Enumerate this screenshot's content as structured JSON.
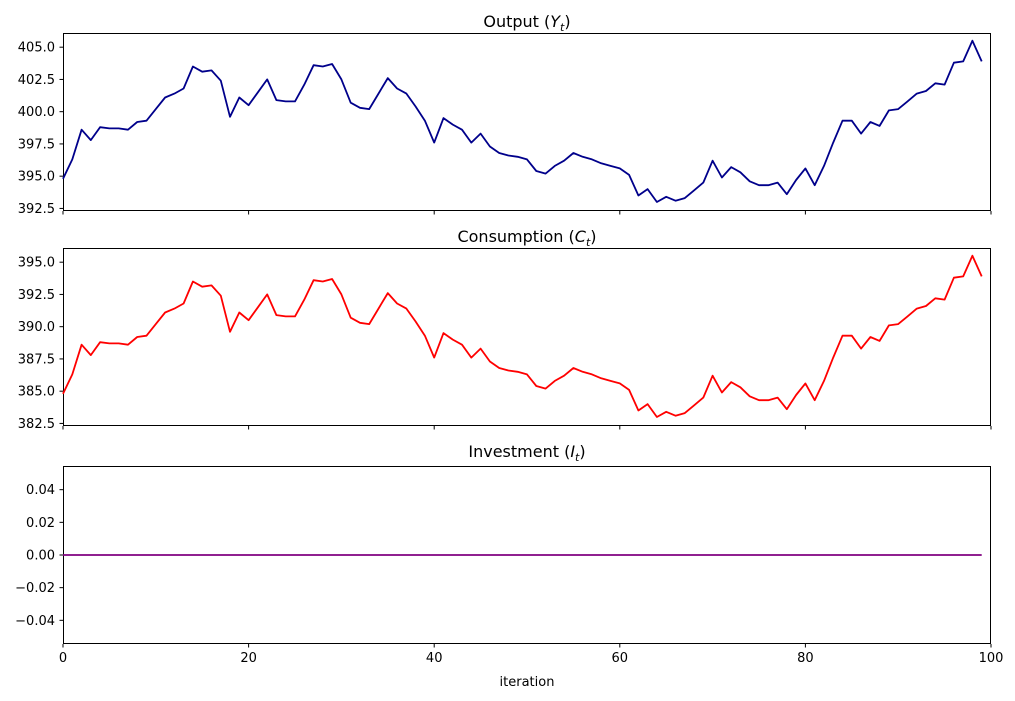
{
  "figure": {
    "background": "#ffffff",
    "text_color": "#000000",
    "spine_color": "#000000"
  },
  "x_axis": {
    "label": "iteration",
    "ticks": [
      0,
      20,
      40,
      60,
      80,
      100
    ],
    "tick_labels": [
      "0",
      "20",
      "40",
      "60",
      "80",
      "100"
    ],
    "xlim": [
      0,
      100
    ],
    "x_start": 0,
    "x_step": 1
  },
  "chart_data": [
    {
      "type": "line",
      "name": "output",
      "title": {
        "prefix": "Output (",
        "variable": "Y",
        "subscript": "t",
        "suffix": ")"
      },
      "line_color": "#00008B",
      "legend": "none",
      "grid": false,
      "ylim": [
        392.3,
        406.1
      ],
      "y_tick_values": [
        405.0,
        402.5,
        400.0,
        397.5,
        395.0,
        392.5
      ],
      "y_tick_labels": [
        "405.0",
        "402.5",
        "400.0",
        "397.5",
        "395.0",
        "392.5"
      ],
      "values": [
        394.8,
        396.3,
        398.6,
        397.8,
        398.8,
        398.7,
        398.7,
        398.6,
        399.2,
        399.3,
        400.2,
        401.1,
        401.4,
        401.8,
        403.5,
        403.1,
        403.2,
        402.4,
        399.6,
        401.1,
        400.5,
        401.5,
        402.5,
        400.9,
        400.8,
        400.8,
        402.1,
        403.6,
        403.5,
        403.7,
        402.5,
        400.7,
        400.3,
        400.2,
        401.4,
        402.6,
        401.8,
        401.4,
        400.4,
        399.3,
        397.6,
        399.5,
        399.0,
        398.6,
        397.6,
        398.3,
        397.3,
        396.8,
        396.6,
        396.5,
        396.3,
        395.4,
        395.2,
        395.8,
        396.2,
        396.8,
        396.5,
        396.3,
        396.0,
        395.8,
        395.6,
        395.1,
        393.5,
        394.0,
        393.0,
        393.4,
        393.1,
        393.3,
        393.9,
        394.5,
        396.2,
        394.9,
        395.7,
        395.3,
        394.6,
        394.3,
        394.3,
        394.5,
        393.6,
        394.7,
        395.6,
        394.3,
        395.8,
        397.6,
        399.3,
        399.3,
        398.3,
        399.2,
        398.9,
        400.1,
        400.2,
        400.8,
        401.4,
        401.6,
        402.2,
        402.1,
        403.8,
        403.9,
        405.5,
        403.9
      ]
    },
    {
      "type": "line",
      "name": "consumption",
      "title": {
        "prefix": "Consumption (",
        "variable": "C",
        "subscript": "t",
        "suffix": ")"
      },
      "line_color": "#FF0000",
      "legend": "none",
      "grid": false,
      "ylim": [
        382.3,
        396.1
      ],
      "y_tick_values": [
        395.0,
        392.5,
        390.0,
        387.5,
        385.0,
        382.5
      ],
      "y_tick_labels": [
        "395.0",
        "392.5",
        "390.0",
        "387.5",
        "385.0",
        "382.5"
      ],
      "values": [
        384.8,
        386.3,
        388.6,
        387.8,
        388.8,
        388.7,
        388.7,
        388.6,
        389.2,
        389.3,
        390.2,
        391.1,
        391.4,
        391.8,
        393.5,
        393.1,
        393.2,
        392.4,
        389.6,
        391.1,
        390.5,
        391.5,
        392.5,
        390.9,
        390.8,
        390.8,
        392.1,
        393.6,
        393.5,
        393.7,
        392.5,
        390.7,
        390.3,
        390.2,
        391.4,
        392.6,
        391.8,
        391.4,
        390.4,
        389.3,
        387.6,
        389.5,
        389.0,
        388.6,
        387.6,
        388.3,
        387.3,
        386.8,
        386.6,
        386.5,
        386.3,
        385.4,
        385.2,
        385.8,
        386.2,
        386.8,
        386.5,
        386.3,
        386.0,
        385.8,
        385.6,
        385.1,
        383.5,
        384.0,
        383.0,
        383.4,
        383.1,
        383.3,
        383.9,
        384.5,
        386.2,
        384.9,
        385.7,
        385.3,
        384.6,
        384.3,
        384.3,
        384.5,
        383.6,
        384.7,
        385.6,
        384.3,
        385.8,
        387.6,
        389.3,
        389.3,
        388.3,
        389.2,
        388.9,
        390.1,
        390.2,
        390.8,
        391.4,
        391.6,
        392.2,
        392.1,
        393.8,
        393.9,
        395.5,
        393.9
      ]
    },
    {
      "type": "line",
      "name": "investment",
      "title": {
        "prefix": "Investment (",
        "variable": "I",
        "subscript": "t",
        "suffix": ")"
      },
      "line_color": "#800080",
      "legend": "none",
      "grid": false,
      "ylim": [
        -0.0545,
        0.0545
      ],
      "y_tick_values": [
        0.04,
        0.02,
        0.0,
        -0.02,
        -0.04
      ],
      "y_tick_labels": [
        "0.04",
        "0.02",
        "0.00",
        "−0.02",
        "−0.04"
      ],
      "values": [
        0,
        0,
        0,
        0,
        0,
        0,
        0,
        0,
        0,
        0,
        0,
        0,
        0,
        0,
        0,
        0,
        0,
        0,
        0,
        0,
        0,
        0,
        0,
        0,
        0,
        0,
        0,
        0,
        0,
        0,
        0,
        0,
        0,
        0,
        0,
        0,
        0,
        0,
        0,
        0,
        0,
        0,
        0,
        0,
        0,
        0,
        0,
        0,
        0,
        0,
        0,
        0,
        0,
        0,
        0,
        0,
        0,
        0,
        0,
        0,
        0,
        0,
        0,
        0,
        0,
        0,
        0,
        0,
        0,
        0,
        0,
        0,
        0,
        0,
        0,
        0,
        0,
        0,
        0,
        0,
        0,
        0,
        0,
        0,
        0,
        0,
        0,
        0,
        0,
        0,
        0,
        0,
        0,
        0,
        0,
        0,
        0,
        0,
        0,
        0
      ]
    }
  ]
}
